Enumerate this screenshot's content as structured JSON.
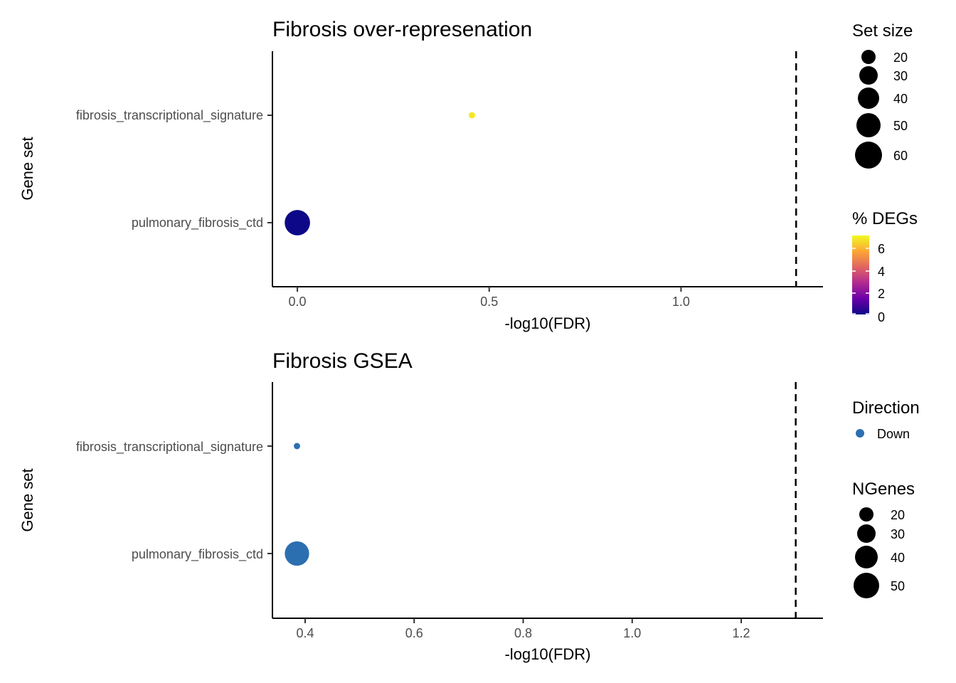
{
  "chart_data": [
    {
      "type": "scatter",
      "title": "Fibrosis over-represenation",
      "xlabel": "-log10(FDR)",
      "ylabel": "Gene set",
      "categories": [
        "fibrosis_transcriptional_signature",
        "pulmonary_fibrosis_ctd"
      ],
      "xlim": [
        -0.065,
        1.37
      ],
      "xticks": [
        "0.0",
        "0.5",
        "1.0"
      ],
      "threshold_x": 1.3,
      "points": [
        {
          "gene_set": "fibrosis_transcriptional_signature",
          "x": 0.455,
          "set_size": 12,
          "pct_degs": 6.7
        },
        {
          "gene_set": "pulmonary_fibrosis_ctd",
          "x": 0.0,
          "set_size": 55,
          "pct_degs": 0
        }
      ],
      "size_legend": {
        "title": "Set size",
        "labels": [
          "20",
          "30",
          "40",
          "50",
          "60"
        ],
        "values": [
          20,
          30,
          40,
          50,
          60
        ]
      },
      "color_legend": {
        "title": "% DEGs",
        "labels": [
          "6",
          "4",
          "2",
          "0"
        ],
        "values": [
          6,
          4,
          2,
          0
        ],
        "range": [
          0,
          7
        ],
        "colors": [
          "#0d0887",
          "#6a00a8",
          "#b12a90",
          "#e16462",
          "#fca636",
          "#f0f921"
        ]
      },
      "grid": false
    },
    {
      "type": "scatter",
      "title": "Fibrosis GSEA",
      "xlabel": "-log10(FDR)",
      "ylabel": "Gene set",
      "categories": [
        "fibrosis_transcriptional_signature",
        "pulmonary_fibrosis_ctd"
      ],
      "xlim": [
        0.34,
        1.35
      ],
      "xticks": [
        "0.4",
        "0.6",
        "0.8",
        "1.0",
        "1.2"
      ],
      "threshold_x": 1.3,
      "points": [
        {
          "gene_set": "fibrosis_transcriptional_signature",
          "x": 0.385,
          "ngenes": 12,
          "direction": "Down"
        },
        {
          "gene_set": "pulmonary_fibrosis_ctd",
          "x": 0.385,
          "ngenes": 50,
          "direction": "Down"
        }
      ],
      "direction_legend": {
        "title": "Direction",
        "labels": [
          "Down"
        ],
        "color": "#2c6fb0"
      },
      "size_legend": {
        "title": "NGenes",
        "labels": [
          "20",
          "30",
          "40",
          "50"
        ],
        "values": [
          20,
          30,
          40,
          50
        ]
      },
      "grid": false
    }
  ]
}
